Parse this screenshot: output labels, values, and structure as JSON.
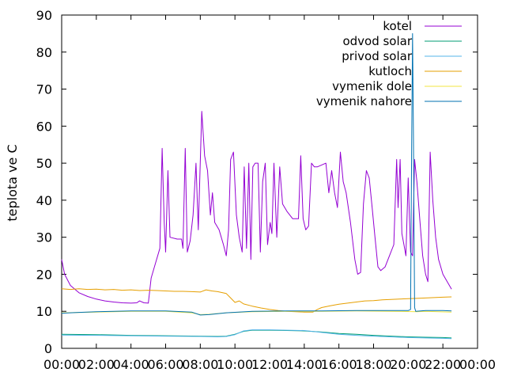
{
  "chart_data": {
    "type": "line",
    "title": "",
    "xlabel": "",
    "ylabel": "teplota ve C",
    "xlim": [
      "00:00",
      "24:00"
    ],
    "ylim": [
      0,
      90
    ],
    "grid": false,
    "legend_position": "top-right",
    "x_tick_labels": [
      "00:00",
      "02:00",
      "04:00",
      "06:00",
      "08:00",
      "10:00",
      "12:00",
      "14:00",
      "16:00",
      "18:00",
      "20:00",
      "22:00",
      "00:00"
    ],
    "y_tick_labels": [
      "0",
      "10",
      "20",
      "30",
      "40",
      "50",
      "60",
      "70",
      "80",
      "90"
    ],
    "series": [
      {
        "name": "kotel",
        "color": "#9400d3",
        "points": [
          [
            "00:00",
            24
          ],
          [
            "00:10",
            20
          ],
          [
            "00:30",
            17
          ],
          [
            "01:00",
            15
          ],
          [
            "01:30",
            14
          ],
          [
            "02:00",
            13.3
          ],
          [
            "02:30",
            12.8
          ],
          [
            "03:00",
            12.5
          ],
          [
            "03:30",
            12.3
          ],
          [
            "04:00",
            12.2
          ],
          [
            "04:20",
            12.3
          ],
          [
            "04:30",
            12.8
          ],
          [
            "04:45",
            12.3
          ],
          [
            "05:00",
            12.2
          ],
          [
            "05:10",
            19
          ],
          [
            "05:25",
            23
          ],
          [
            "05:40",
            27
          ],
          [
            "05:48",
            54
          ],
          [
            "05:55",
            34
          ],
          [
            "06:00",
            26
          ],
          [
            "06:08",
            48
          ],
          [
            "06:15",
            30
          ],
          [
            "06:40",
            29.5
          ],
          [
            "06:55",
            29.5
          ],
          [
            "07:00",
            27
          ],
          [
            "07:08",
            54
          ],
          [
            "07:15",
            26
          ],
          [
            "07:25",
            29
          ],
          [
            "07:35",
            36
          ],
          [
            "07:45",
            50
          ],
          [
            "07:53",
            32
          ],
          [
            "08:05",
            64
          ],
          [
            "08:15",
            52
          ],
          [
            "08:25",
            48
          ],
          [
            "08:35",
            36
          ],
          [
            "08:42",
            42
          ],
          [
            "08:50",
            34
          ],
          [
            "09:05",
            32
          ],
          [
            "09:20",
            28
          ],
          [
            "09:30",
            25
          ],
          [
            "09:38",
            32
          ],
          [
            "09:45",
            51
          ],
          [
            "09:55",
            53
          ],
          [
            "10:05",
            36
          ],
          [
            "10:15",
            30
          ],
          [
            "10:25",
            26
          ],
          [
            "10:32",
            49
          ],
          [
            "10:40",
            27
          ],
          [
            "10:48",
            50
          ],
          [
            "10:55",
            24
          ],
          [
            "11:02",
            49
          ],
          [
            "11:10",
            50
          ],
          [
            "11:20",
            50
          ],
          [
            "11:28",
            26
          ],
          [
            "11:36",
            45
          ],
          [
            "11:45",
            50
          ],
          [
            "11:53",
            28
          ],
          [
            "12:02",
            34
          ],
          [
            "12:08",
            31
          ],
          [
            "12:15",
            50
          ],
          [
            "12:25",
            30
          ],
          [
            "12:35",
            49
          ],
          [
            "12:45",
            39
          ],
          [
            "13:00",
            37
          ],
          [
            "13:20",
            35
          ],
          [
            "13:40",
            35
          ],
          [
            "13:48",
            52
          ],
          [
            "13:56",
            35
          ],
          [
            "14:05",
            32
          ],
          [
            "14:15",
            33
          ],
          [
            "14:25",
            50
          ],
          [
            "14:35",
            49
          ],
          [
            "14:45",
            49
          ],
          [
            "15:00",
            49.5
          ],
          [
            "15:15",
            50
          ],
          [
            "15:25",
            42
          ],
          [
            "15:35",
            48
          ],
          [
            "15:45",
            42
          ],
          [
            "15:55",
            38
          ],
          [
            "16:05",
            53
          ],
          [
            "16:15",
            45
          ],
          [
            "16:25",
            42
          ],
          [
            "16:40",
            34
          ],
          [
            "16:55",
            24
          ],
          [
            "17:05",
            20
          ],
          [
            "17:15",
            20.5
          ],
          [
            "17:25",
            39
          ],
          [
            "17:35",
            48
          ],
          [
            "17:45",
            46
          ],
          [
            "17:55",
            38
          ],
          [
            "18:05",
            30
          ],
          [
            "18:15",
            22
          ],
          [
            "18:25",
            21
          ],
          [
            "18:40",
            22
          ],
          [
            "18:55",
            25
          ],
          [
            "19:10",
            28
          ],
          [
            "19:20",
            51
          ],
          [
            "19:25",
            38
          ],
          [
            "19:32",
            51
          ],
          [
            "19:38",
            31
          ],
          [
            "19:45",
            28
          ],
          [
            "19:52",
            25
          ],
          [
            "20:00",
            46
          ],
          [
            "20:08",
            26
          ],
          [
            "20:15",
            25
          ],
          [
            "20:22",
            51
          ],
          [
            "20:30",
            45
          ],
          [
            "20:40",
            35
          ],
          [
            "20:50",
            25
          ],
          [
            "21:00",
            20
          ],
          [
            "21:08",
            18
          ],
          [
            "21:16",
            53
          ],
          [
            "21:25",
            40
          ],
          [
            "21:35",
            30
          ],
          [
            "21:45",
            24
          ],
          [
            "22:00",
            20
          ],
          [
            "22:15",
            18
          ],
          [
            "22:30",
            16
          ]
        ]
      },
      {
        "name": "odvod solar",
        "color": "#009e73",
        "points": [
          [
            "00:00",
            3.8
          ],
          [
            "02:00",
            3.7
          ],
          [
            "04:00",
            3.5
          ],
          [
            "06:00",
            3.4
          ],
          [
            "08:00",
            3.3
          ],
          [
            "09:00",
            3.2
          ],
          [
            "09:30",
            3.3
          ],
          [
            "10:00",
            3.8
          ],
          [
            "10:30",
            4.6
          ],
          [
            "11:00",
            4.9
          ],
          [
            "12:00",
            4.9
          ],
          [
            "13:00",
            4.8
          ],
          [
            "14:00",
            4.7
          ],
          [
            "15:00",
            4.4
          ],
          [
            "16:00",
            4.0
          ],
          [
            "17:00",
            3.8
          ],
          [
            "18:00",
            3.5
          ],
          [
            "19:00",
            3.3
          ],
          [
            "20:00",
            3.1
          ],
          [
            "21:00",
            3.0
          ],
          [
            "22:00",
            2.9
          ],
          [
            "22:30",
            2.8
          ]
        ]
      },
      {
        "name": "privod solar",
        "color": "#56b4e9",
        "points": [
          [
            "00:00",
            3.6
          ],
          [
            "02:00",
            3.5
          ],
          [
            "04:00",
            3.4
          ],
          [
            "06:00",
            3.3
          ],
          [
            "08:00",
            3.2
          ],
          [
            "09:00",
            3.1
          ],
          [
            "09:30",
            3.2
          ],
          [
            "10:00",
            3.7
          ],
          [
            "10:30",
            4.7
          ],
          [
            "11:00",
            5.0
          ],
          [
            "12:00",
            5.0
          ],
          [
            "13:00",
            4.9
          ],
          [
            "14:00",
            4.8
          ],
          [
            "15:00",
            4.3
          ],
          [
            "16:00",
            3.8
          ],
          [
            "17:00",
            3.5
          ],
          [
            "18:00",
            3.3
          ],
          [
            "19:00",
            3.1
          ],
          [
            "20:00",
            2.9
          ],
          [
            "21:00",
            2.8
          ],
          [
            "22:00",
            2.7
          ],
          [
            "22:30",
            2.6
          ]
        ]
      },
      {
        "name": "kutloch",
        "color": "#e69f00",
        "points": [
          [
            "00:00",
            16.1
          ],
          [
            "00:30",
            15.9
          ],
          [
            "01:00",
            16.1
          ],
          [
            "01:30",
            15.9
          ],
          [
            "02:00",
            16.0
          ],
          [
            "02:30",
            15.8
          ],
          [
            "03:00",
            15.9
          ],
          [
            "03:30",
            15.7
          ],
          [
            "04:00",
            15.8
          ],
          [
            "04:30",
            15.6
          ],
          [
            "05:00",
            15.7
          ],
          [
            "05:30",
            15.6
          ],
          [
            "06:00",
            15.5
          ],
          [
            "06:30",
            15.4
          ],
          [
            "07:00",
            15.4
          ],
          [
            "07:30",
            15.3
          ],
          [
            "08:00",
            15.2
          ],
          [
            "08:20",
            15.8
          ],
          [
            "08:40",
            15.5
          ],
          [
            "09:00",
            15.3
          ],
          [
            "09:30",
            14.8
          ],
          [
            "09:45",
            13.6
          ],
          [
            "10:00",
            12.4
          ],
          [
            "10:15",
            12.8
          ],
          [
            "10:30",
            12.0
          ],
          [
            "11:00",
            11.4
          ],
          [
            "11:30",
            10.9
          ],
          [
            "12:00",
            10.5
          ],
          [
            "12:30",
            10.2
          ],
          [
            "13:00",
            10.0
          ],
          [
            "13:30",
            9.9
          ],
          [
            "14:00",
            9.8
          ],
          [
            "14:30",
            9.8
          ],
          [
            "14:45",
            10.5
          ],
          [
            "15:00",
            11.0
          ],
          [
            "15:30",
            11.5
          ],
          [
            "16:00",
            11.9
          ],
          [
            "16:30",
            12.2
          ],
          [
            "17:00",
            12.5
          ],
          [
            "17:30",
            12.8
          ],
          [
            "18:00",
            12.9
          ],
          [
            "18:30",
            13.1
          ],
          [
            "19:00",
            13.2
          ],
          [
            "19:30",
            13.3
          ],
          [
            "20:00",
            13.4
          ],
          [
            "20:30",
            13.5
          ],
          [
            "21:00",
            13.6
          ],
          [
            "21:30",
            13.7
          ],
          [
            "22:00",
            13.8
          ],
          [
            "22:30",
            13.9
          ]
        ]
      },
      {
        "name": "vymenik dole",
        "color": "#f0e442",
        "points": [
          [
            "00:00",
            9.6
          ],
          [
            "02:00",
            9.8
          ],
          [
            "04:00",
            10.0
          ],
          [
            "06:00",
            10.0
          ],
          [
            "07:30",
            9.6
          ],
          [
            "08:00",
            9.1
          ],
          [
            "08:30",
            9.2
          ],
          [
            "09:30",
            9.6
          ],
          [
            "11:00",
            9.9
          ],
          [
            "13:00",
            10.0
          ],
          [
            "15:00",
            10.0
          ],
          [
            "17:00",
            10.1
          ],
          [
            "19:00",
            10.0
          ],
          [
            "20:30",
            9.9
          ],
          [
            "21:00",
            10.0
          ],
          [
            "22:30",
            9.8
          ]
        ]
      },
      {
        "name": "vymenik nahore",
        "color": "#0072b2",
        "points": [
          [
            "00:00",
            9.5
          ],
          [
            "01:00",
            9.7
          ],
          [
            "02:00",
            9.9
          ],
          [
            "04:00",
            10.1
          ],
          [
            "06:00",
            10.1
          ],
          [
            "07:30",
            9.8
          ],
          [
            "08:00",
            9.0
          ],
          [
            "08:30",
            9.1
          ],
          [
            "09:30",
            9.6
          ],
          [
            "11:00",
            10.0
          ],
          [
            "13:00",
            10.1
          ],
          [
            "15:00",
            10.1
          ],
          [
            "17:00",
            10.2
          ],
          [
            "19:00",
            10.2
          ],
          [
            "20:00",
            10.2
          ],
          [
            "20:08",
            10.5
          ],
          [
            "20:12",
            55
          ],
          [
            "20:15",
            85
          ],
          [
            "20:18",
            58
          ],
          [
            "20:22",
            11
          ],
          [
            "20:26",
            10
          ],
          [
            "21:00",
            10.2
          ],
          [
            "22:00",
            10.2
          ],
          [
            "22:30",
            10.1
          ]
        ]
      }
    ]
  }
}
